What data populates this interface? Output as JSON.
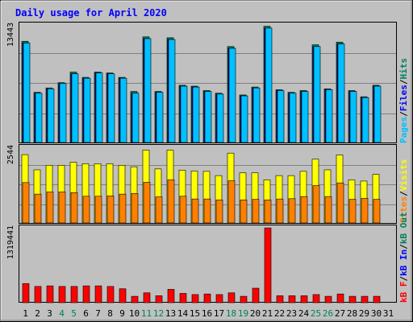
{
  "title": "Daily usage for April 2020",
  "colors": {
    "title": "#0000ff",
    "hits": "#00805c",
    "files": "#0000ff",
    "pages": "#00c0ff",
    "visits": "#ffff00",
    "sites": "#ff8000",
    "kb_in": "#0000ff",
    "kb_out": "#00805c",
    "kb_f": "#ff0000",
    "weekday_label": "#000000",
    "weekend_label": "#00805c"
  },
  "legend": {
    "top": {
      "pages": "Pages",
      "files": "Files",
      "hits": "Hits"
    },
    "middle": {
      "sites": "Sites",
      "visits": "Visits"
    },
    "bottom": {
      "kbf": "kB F",
      "kbin": "kB In",
      "kbout": "kB Out"
    }
  },
  "axis_max": {
    "top": "13443",
    "middle": "2544",
    "bottom": "1319441"
  },
  "weekend_days": [
    4,
    5,
    11,
    12,
    18,
    19,
    25,
    26
  ],
  "chart_data": [
    {
      "type": "bar",
      "panel": "hits-files-pages",
      "x": [
        1,
        2,
        3,
        4,
        5,
        6,
        7,
        8,
        9,
        10,
        11,
        12,
        13,
        14,
        15,
        16,
        17,
        18,
        19,
        20,
        21,
        22,
        23,
        24,
        25,
        26,
        27,
        28,
        29,
        30
      ],
      "ylim": [
        0,
        13443
      ],
      "series": [
        {
          "name": "Hits",
          "values": [
            11500,
            5700,
            6200,
            6800,
            8000,
            7400,
            8000,
            7900,
            7400,
            5800,
            12000,
            5800,
            11900,
            6500,
            6400,
            5900,
            5600,
            10900,
            5400,
            6300,
            13200,
            6000,
            5700,
            5900,
            11100,
            6100,
            11400,
            5900,
            5200,
            6500
          ]
        },
        {
          "name": "Files",
          "values": [
            11300,
            5600,
            6100,
            6700,
            7800,
            7300,
            7900,
            7800,
            7300,
            5600,
            11800,
            5700,
            11700,
            6400,
            6300,
            5800,
            5500,
            10700,
            5300,
            6200,
            13000,
            5900,
            5600,
            5800,
            10900,
            6000,
            11200,
            5800,
            5100,
            6400
          ]
        },
        {
          "name": "Pages",
          "values": [
            11300,
            5600,
            6100,
            6700,
            7800,
            7300,
            7900,
            7800,
            7300,
            5600,
            11800,
            5700,
            11700,
            6400,
            6300,
            5800,
            5500,
            10700,
            5300,
            6200,
            13000,
            5900,
            5600,
            5800,
            10900,
            6000,
            11200,
            5800,
            5100,
            6400
          ]
        }
      ]
    },
    {
      "type": "bar",
      "panel": "visits-sites",
      "x": [
        1,
        2,
        3,
        4,
        5,
        6,
        7,
        8,
        9,
        10,
        11,
        12,
        13,
        14,
        15,
        16,
        17,
        18,
        19,
        20,
        21,
        22,
        23,
        24,
        25,
        26,
        27,
        28,
        29,
        30
      ],
      "ylim": [
        0,
        2544
      ],
      "series": [
        {
          "name": "Visits",
          "values": [
            2250,
            1750,
            1900,
            1900,
            2000,
            1950,
            1950,
            1950,
            1900,
            1850,
            2400,
            1780,
            2400,
            1740,
            1710,
            1700,
            1560,
            2300,
            1650,
            1650,
            1420,
            1560,
            1560,
            1700,
            2100,
            1750,
            2240,
            1420,
            1380,
            1600
          ]
        },
        {
          "name": "Sites",
          "values": [
            1330,
            950,
            1020,
            1020,
            1000,
            880,
            880,
            890,
            950,
            970,
            1340,
            860,
            1420,
            880,
            790,
            790,
            760,
            1390,
            760,
            780,
            760,
            790,
            800,
            870,
            1230,
            870,
            1320,
            780,
            810,
            780
          ]
        }
      ]
    },
    {
      "type": "bar",
      "panel": "kbf-kbin-kbout",
      "x": [
        1,
        2,
        3,
        4,
        5,
        6,
        7,
        8,
        9,
        10,
        11,
        12,
        13,
        14,
        15,
        16,
        17,
        18,
        19,
        20,
        21,
        22,
        23,
        24,
        25,
        26,
        27,
        28,
        29,
        30
      ],
      "ylim": [
        0,
        1319441
      ],
      "series": [
        {
          "name": "kB F",
          "values": [
            330000,
            280000,
            290000,
            280000,
            280000,
            290000,
            290000,
            280000,
            240000,
            110000,
            170000,
            120000,
            230000,
            160000,
            140000,
            150000,
            140000,
            170000,
            110000,
            250000,
            1290000,
            120000,
            120000,
            120000,
            140000,
            110000,
            150000,
            110000,
            110000,
            110000
          ]
        }
      ]
    }
  ]
}
